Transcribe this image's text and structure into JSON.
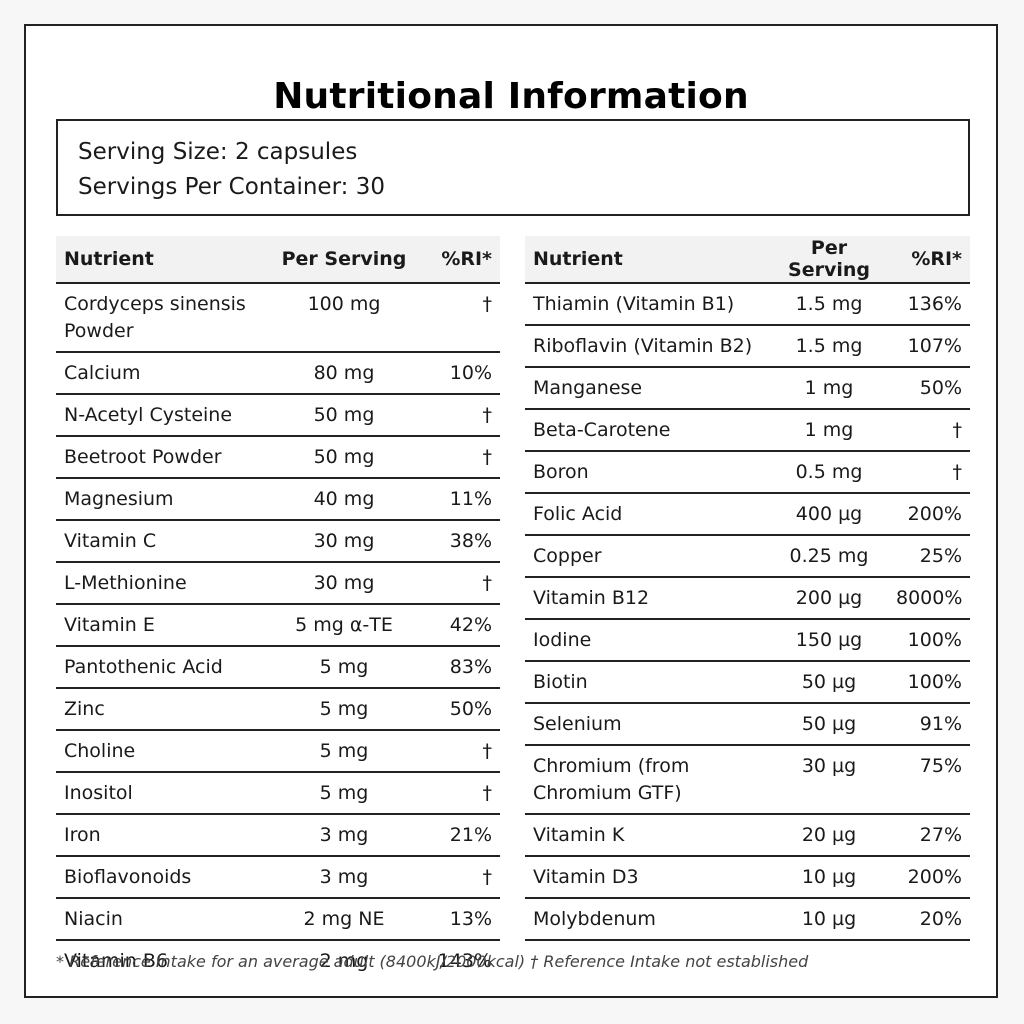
{
  "title": "Nutritional Information",
  "serving": {
    "size": "Serving Size: 2 capsules",
    "per_container": "Servings Per Container: 30"
  },
  "headers": {
    "nutrient": "Nutrient",
    "per_serving": "Per Serving",
    "ri": "%RI*"
  },
  "left_table": [
    {
      "nutrient": "Cordyceps sinensis Powder",
      "amount": "100 mg",
      "ri": "†"
    },
    {
      "nutrient": "Calcium",
      "amount": "80 mg",
      "ri": "10%"
    },
    {
      "nutrient": "N-Acetyl Cysteine",
      "amount": "50 mg",
      "ri": "†"
    },
    {
      "nutrient": "Beetroot Powder",
      "amount": "50 mg",
      "ri": "†"
    },
    {
      "nutrient": "Magnesium",
      "amount": "40 mg",
      "ri": "11%"
    },
    {
      "nutrient": "Vitamin C",
      "amount": "30 mg",
      "ri": "38%"
    },
    {
      "nutrient": "L-Methionine",
      "amount": "30 mg",
      "ri": "†"
    },
    {
      "nutrient": "Vitamin E",
      "amount": "5 mg α-TE",
      "ri": "42%"
    },
    {
      "nutrient": "Pantothenic Acid",
      "amount": "5 mg",
      "ri": "83%"
    },
    {
      "nutrient": "Zinc",
      "amount": "5 mg",
      "ri": "50%"
    },
    {
      "nutrient": "Choline",
      "amount": "5 mg",
      "ri": "†"
    },
    {
      "nutrient": "Inositol",
      "amount": "5 mg",
      "ri": "†"
    },
    {
      "nutrient": "Iron",
      "amount": "3 mg",
      "ri": "21%"
    },
    {
      "nutrient": "Bioflavonoids",
      "amount": "3 mg",
      "ri": "†"
    },
    {
      "nutrient": "Niacin",
      "amount": "2 mg NE",
      "ri": "13%"
    },
    {
      "nutrient": "Vitamin B6",
      "amount": "2 mg",
      "ri": "143%"
    }
  ],
  "right_table": [
    {
      "nutrient": "Thiamin (Vitamin B1)",
      "amount": "1.5 mg",
      "ri": "136%"
    },
    {
      "nutrient": "Riboflavin (Vitamin B2)",
      "amount": "1.5 mg",
      "ri": "107%"
    },
    {
      "nutrient": "Manganese",
      "amount": "1 mg",
      "ri": "50%"
    },
    {
      "nutrient": "Beta-Carotene",
      "amount": "1 mg",
      "ri": "†"
    },
    {
      "nutrient": "Boron",
      "amount": "0.5 mg",
      "ri": "†"
    },
    {
      "nutrient": "Folic Acid",
      "amount": "400 µg",
      "ri": "200%"
    },
    {
      "nutrient": "Copper",
      "amount": "0.25 mg",
      "ri": "25%"
    },
    {
      "nutrient": "Vitamin B12",
      "amount": "200 µg",
      "ri": "8000%"
    },
    {
      "nutrient": "Iodine",
      "amount": "150 µg",
      "ri": "100%"
    },
    {
      "nutrient": "Biotin",
      "amount": "50 µg",
      "ri": "100%"
    },
    {
      "nutrient": "Selenium",
      "amount": "50 µg",
      "ri": "91%"
    },
    {
      "nutrient": "Chromium (from Chromium GTF)",
      "amount": "30 µg",
      "ri": "75%"
    },
    {
      "nutrient": "Vitamin K",
      "amount": "20 µg",
      "ri": "27%"
    },
    {
      "nutrient": "Vitamin D3",
      "amount": "10 µg",
      "ri": "200%"
    },
    {
      "nutrient": "Molybdenum",
      "amount": "10 µg",
      "ri": "20%"
    }
  ],
  "footnote": "* Reference Intake for an average adult (8400kJ/2000kcal) † Reference Intake not established"
}
